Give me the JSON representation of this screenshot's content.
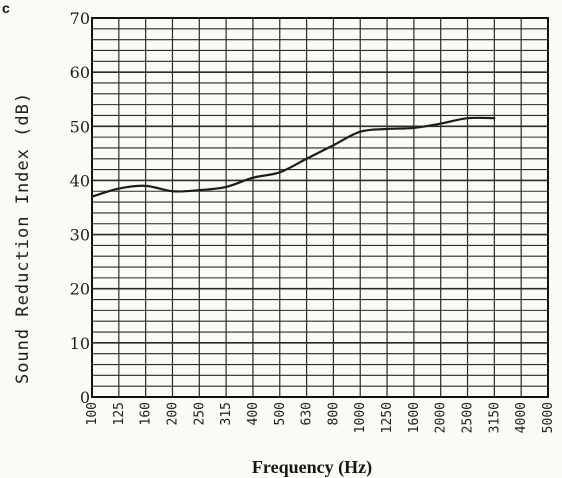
{
  "panel_label": "c",
  "colors": {
    "line": "#1c1c1c",
    "grid": "#2a2a2a",
    "frame": "#111111"
  },
  "chart_data": {
    "type": "line",
    "xlabel": "Frequency (Hz)",
    "ylabel": "Sound Reduction Index (dB)",
    "categories": [
      "100",
      "125",
      "160",
      "200",
      "250",
      "315",
      "400",
      "500",
      "630",
      "800",
      "1000",
      "1250",
      "1600",
      "2000",
      "2500",
      "3150",
      "4000",
      "5000"
    ],
    "ylim": [
      0,
      70
    ],
    "y_ticks": [
      "0",
      "10",
      "20",
      "30",
      "40",
      "50",
      "60",
      "70"
    ],
    "grid": true,
    "series": [
      {
        "values": [
          37,
          38.5,
          39,
          38,
          38.2,
          38.8,
          40.5,
          41.5,
          44,
          46.5,
          49,
          49.5,
          49.7,
          50.5,
          51.5,
          51.5,
          null,
          null
        ]
      }
    ]
  }
}
